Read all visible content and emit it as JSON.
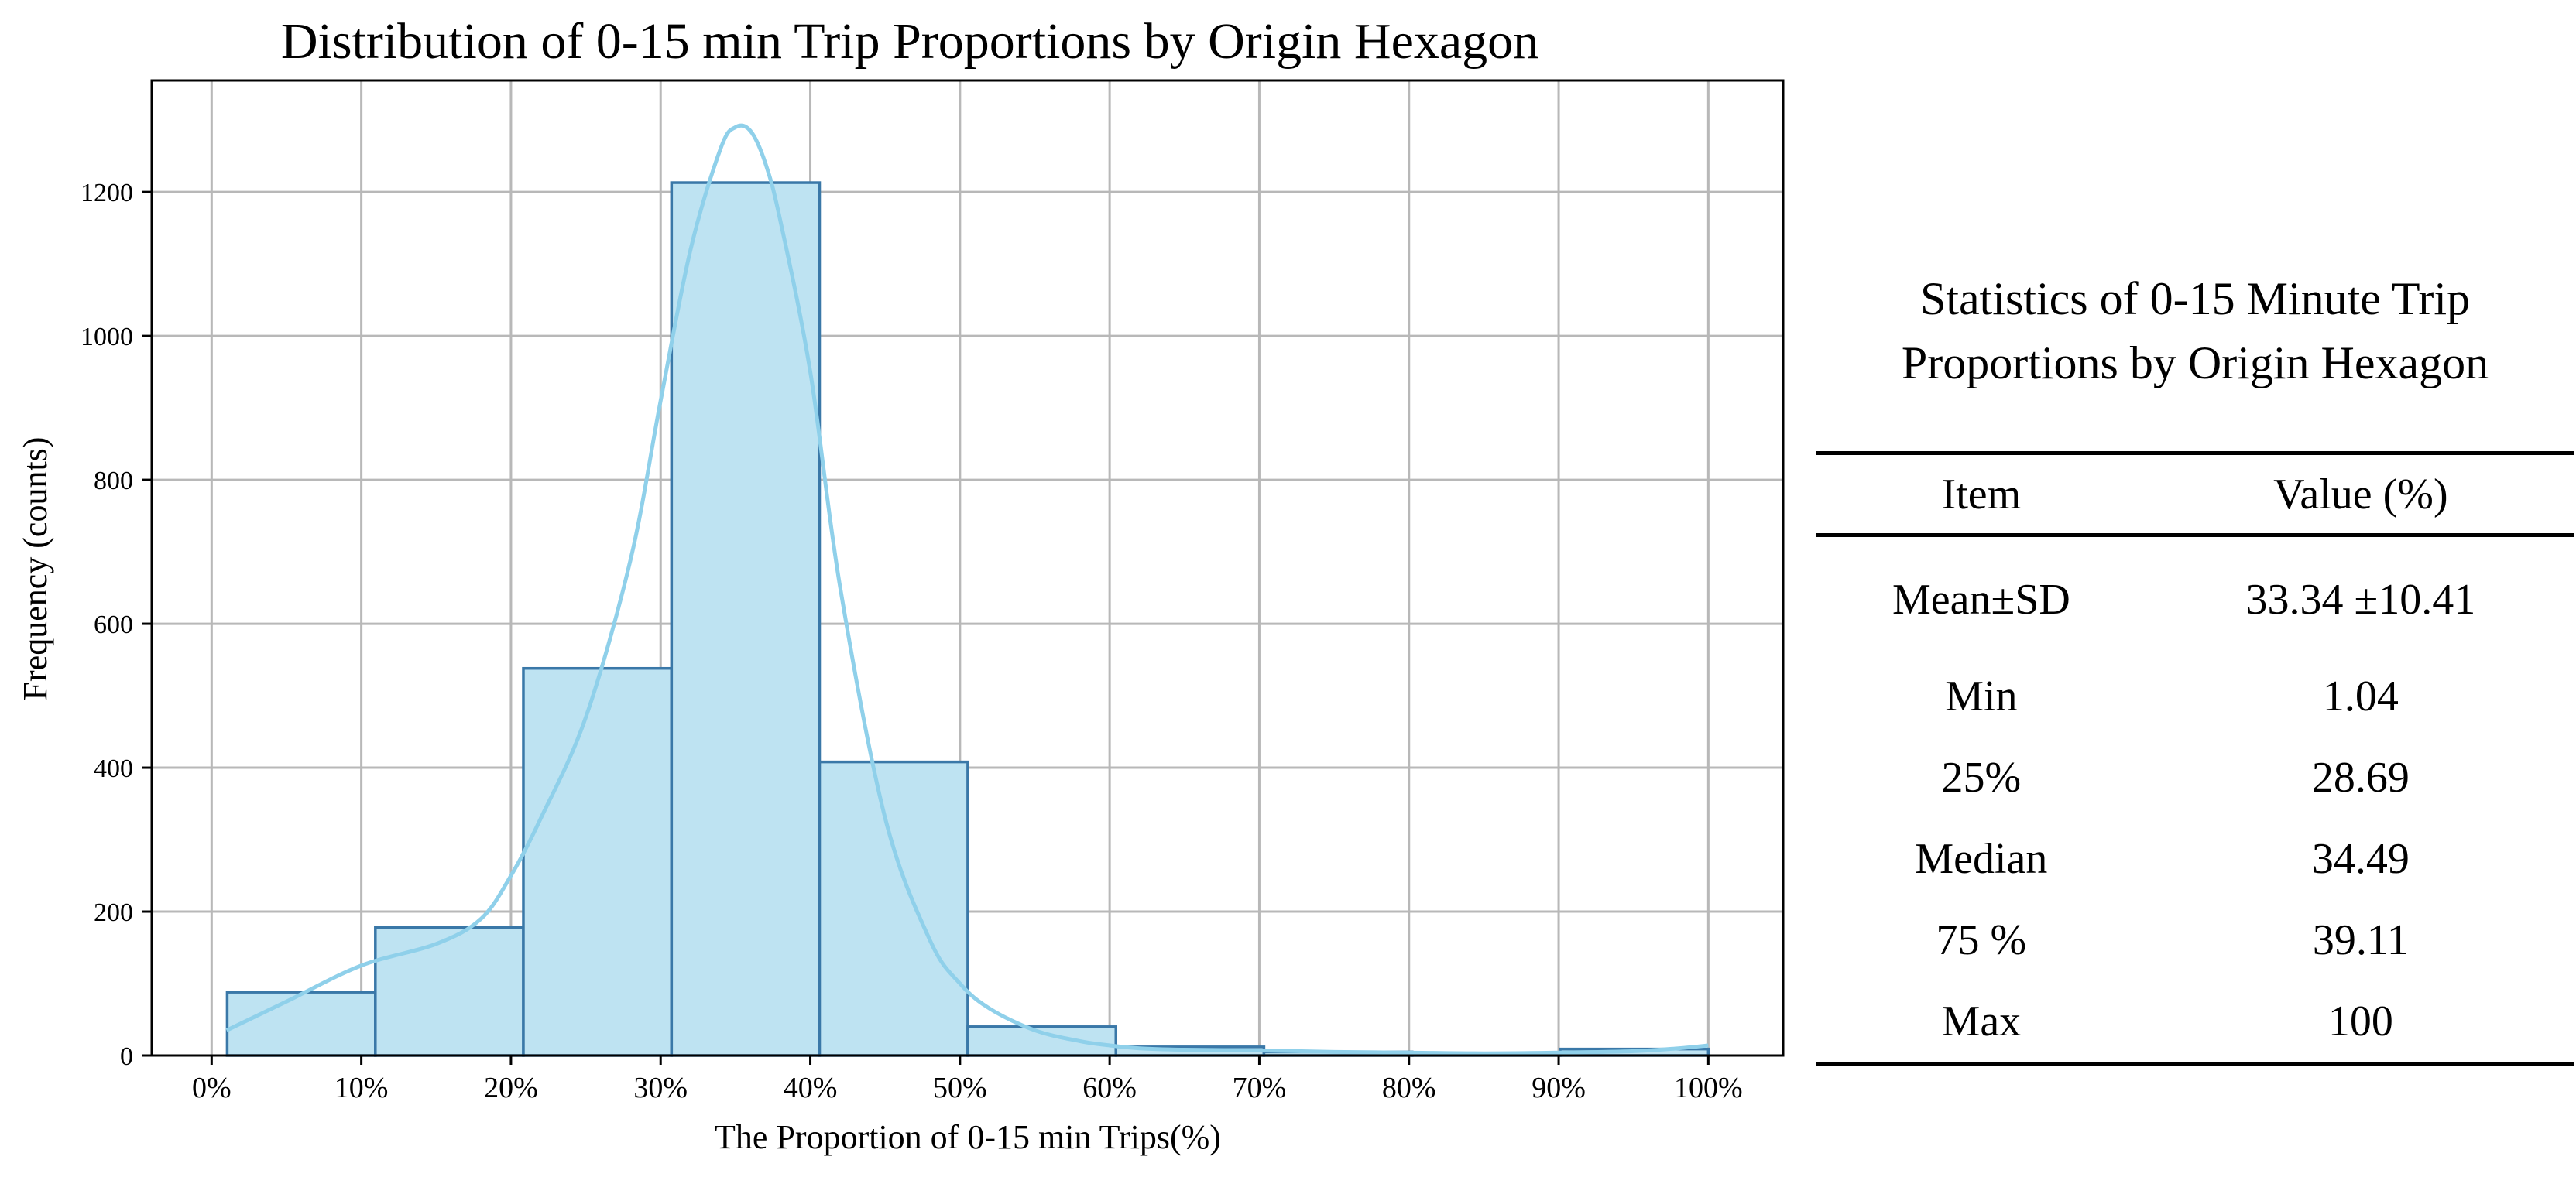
{
  "chart_data": {
    "type": "bar",
    "subtype": "histogram_with_kde",
    "title": "Distribution of 0-15 min Trip Proportions by Origin Hexagon",
    "xlabel": "The Proportion of 0-15 min Trips(%)",
    "ylabel": "Frequency (counts)",
    "xlim": [
      -4,
      105
    ],
    "ylim": [
      0,
      1355
    ],
    "grid": true,
    "x_ticks": [
      0,
      10,
      20,
      30,
      40,
      50,
      60,
      70,
      80,
      90,
      100
    ],
    "x_tick_labels": [
      "0%",
      "10%",
      "20%",
      "30%",
      "40%",
      "50%",
      "60%",
      "70%",
      "80%",
      "90%",
      "100%"
    ],
    "y_ticks": [
      0,
      200,
      400,
      600,
      800,
      1000,
      1200
    ],
    "y_tick_labels": [
      "0",
      "200",
      "400",
      "600",
      "800",
      "1000",
      "1200"
    ],
    "bins": [
      {
        "start": 1.04,
        "end": 10.94,
        "count": 88
      },
      {
        "start": 10.94,
        "end": 20.83,
        "count": 178
      },
      {
        "start": 20.83,
        "end": 30.73,
        "count": 538
      },
      {
        "start": 30.73,
        "end": 40.62,
        "count": 1213
      },
      {
        "start": 40.62,
        "end": 50.52,
        "count": 408
      },
      {
        "start": 50.52,
        "end": 60.42,
        "count": 40
      },
      {
        "start": 60.42,
        "end": 70.31,
        "count": 12
      },
      {
        "start": 70.31,
        "end": 80.21,
        "count": 5
      },
      {
        "start": 80.21,
        "end": 90.1,
        "count": 3
      },
      {
        "start": 90.1,
        "end": 100,
        "count": 9
      }
    ],
    "kde": {
      "x": [
        1,
        5,
        10,
        15,
        18,
        20,
        22,
        25,
        28,
        30,
        32,
        34,
        35,
        36,
        37,
        38,
        40,
        42,
        45,
        48,
        50,
        52,
        55,
        58,
        60,
        62,
        65,
        70,
        75,
        80,
        85,
        90,
        95,
        98,
        100
      ],
      "y": [
        35,
        75,
        125,
        155,
        190,
        250,
        330,
        470,
        690,
        910,
        1120,
        1260,
        1290,
        1285,
        1240,
        1160,
        950,
        650,
        330,
        160,
        100,
        65,
        35,
        20,
        14,
        10,
        8,
        7,
        5,
        4,
        3,
        4,
        6,
        10,
        14
      ]
    },
    "colors": {
      "bar_fill": "#bee3f2",
      "bar_edge": "#3a78a8",
      "kde_line": "#8fd0ea",
      "grid": "#b8b8b8"
    }
  },
  "stats_table": {
    "title_line1": "Statistics of 0-15 Minute Trip",
    "title_line2": "Proportions by Origin Hexagon",
    "headers": [
      "Item",
      "Value (%)"
    ],
    "rows": [
      [
        "Mean±SD",
        "33.34 ±10.41"
      ],
      [
        "Min",
        "1.04"
      ],
      [
        "25%",
        "28.69"
      ],
      [
        "Median",
        "34.49"
      ],
      [
        "75 %",
        "39.11"
      ],
      [
        "Max",
        "100"
      ]
    ]
  }
}
